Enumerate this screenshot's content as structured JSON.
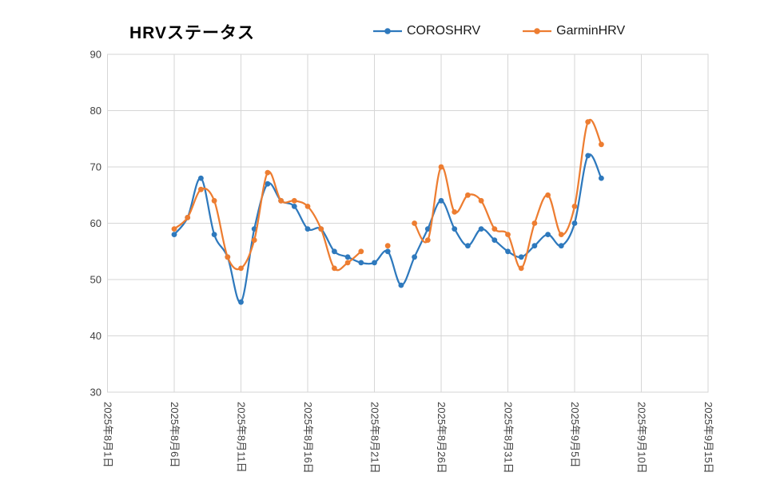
{
  "window": {
    "background": "#FFFFFF"
  },
  "chart_data": {
    "type": "line",
    "title": "HRVステータス",
    "xlabel": "",
    "ylabel": "",
    "ylim": [
      30,
      90
    ],
    "ytick_step": 10,
    "ytick_labels": [
      "30",
      "40",
      "50",
      "60",
      "70",
      "80",
      "90"
    ],
    "x_tick_labels": [
      "2025年8月1日",
      "2025年8月6日",
      "2025年8月11日",
      "2025年8月16日",
      "2025年8月21日",
      "2025年8月26日",
      "2025年8月31日",
      "2025年9月5日",
      "2025年9月10日",
      "2025年9月15日"
    ],
    "x_tick_day_offsets": [
      0,
      5,
      10,
      15,
      20,
      25,
      30,
      35,
      40,
      45
    ],
    "x_axis_span_days": 45,
    "x_start_offset_days": 5,
    "grid": "on",
    "smooth_lines": true,
    "legend_position": "top",
    "categories": [
      "2025年8月6日",
      "2025年8月7日",
      "2025年8月8日",
      "2025年8月9日",
      "2025年8月10日",
      "2025年8月11日",
      "2025年8月12日",
      "2025年8月13日",
      "2025年8月14日",
      "2025年8月15日",
      "2025年8月16日",
      "2025年8月17日",
      "2025年8月18日",
      "2025年8月19日",
      "2025年8月20日",
      "2025年8月21日",
      "2025年8月22日",
      "2025年8月23日",
      "2025年8月24日",
      "2025年8月25日",
      "2025年8月26日",
      "2025年8月27日",
      "2025年8月28日",
      "2025年8月29日",
      "2025年8月30日",
      "2025年8月31日",
      "2025年9月1日",
      "2025年9月2日",
      "2025年9月3日",
      "2025年9月4日",
      "2025年9月5日",
      "2025年9月6日",
      "2025年9月7日"
    ],
    "series": [
      {
        "name": "COROSHRV",
        "color": "#2E79BD",
        "values": [
          58,
          61,
          68,
          58,
          54,
          46,
          59,
          67,
          64,
          63,
          59,
          59,
          55,
          54,
          53,
          53,
          55,
          49,
          54,
          59,
          64,
          59,
          56,
          59,
          57,
          55,
          54,
          56,
          58,
          56,
          60,
          72,
          68
        ]
      },
      {
        "name": "GarminHRV",
        "color": "#ED7D31",
        "values": [
          59,
          61,
          66,
          64,
          54,
          52,
          57,
          69,
          64,
          64,
          63,
          59,
          52,
          53,
          55,
          null,
          56,
          null,
          60,
          57,
          70,
          62,
          65,
          64,
          59,
          58,
          52,
          60,
          65,
          58,
          63,
          78,
          74
        ]
      }
    ],
    "colors": {
      "gridline": "#D6D6D6",
      "plot_border": "#D6D6D6",
      "axis_text": "#3F3F3F"
    }
  }
}
